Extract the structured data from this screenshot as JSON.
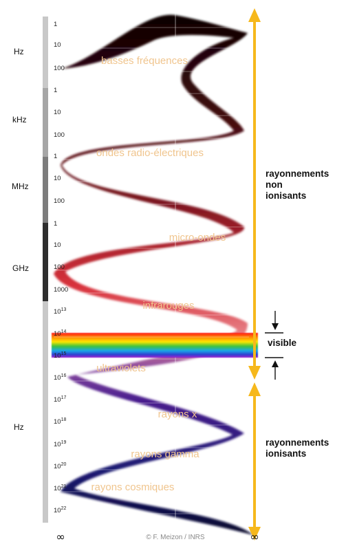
{
  "unit_groups": [
    {
      "label": "Hz",
      "color": "#c8c8c8"
    },
    {
      "label": "kHz",
      "color": "#a6a6a6"
    },
    {
      "label": "MHz",
      "color": "#7c7c7c"
    },
    {
      "label": "GHz",
      "color": "#2e2e2e"
    },
    {
      "label": "Hz",
      "color": "#c8c8c8"
    }
  ],
  "ticks": [
    {
      "base": "1",
      "exp": ""
    },
    {
      "base": "10",
      "exp": ""
    },
    {
      "base": "100",
      "exp": ""
    },
    {
      "base": "1",
      "exp": ""
    },
    {
      "base": "10",
      "exp": ""
    },
    {
      "base": "100",
      "exp": ""
    },
    {
      "base": "1",
      "exp": ""
    },
    {
      "base": "10",
      "exp": ""
    },
    {
      "base": "100",
      "exp": ""
    },
    {
      "base": "1",
      "exp": ""
    },
    {
      "base": "10",
      "exp": ""
    },
    {
      "base": "100",
      "exp": ""
    },
    {
      "base": "1000",
      "exp": ""
    },
    {
      "base": "10",
      "exp": "13"
    },
    {
      "base": "10",
      "exp": "14"
    },
    {
      "base": "10",
      "exp": "15"
    },
    {
      "base": "10",
      "exp": "16"
    },
    {
      "base": "10",
      "exp": "17"
    },
    {
      "base": "10",
      "exp": "18"
    },
    {
      "base": "10",
      "exp": "19"
    },
    {
      "base": "10",
      "exp": "20"
    },
    {
      "base": "10",
      "exp": "21"
    },
    {
      "base": "10",
      "exp": "22"
    }
  ],
  "bands": [
    "basses fréquences",
    "ondes radio-électriques",
    "micro-ondes",
    "infrarouges",
    "ultraviolets",
    "rayons x",
    "rayons gamma",
    "rayons cosmiques"
  ],
  "side_labels": {
    "non_ionizing": [
      "rayonnements",
      "non",
      "ionisants"
    ],
    "visible": "visible",
    "ionizing": [
      "rayonnements",
      "ionisants"
    ]
  },
  "infinity_symbol": "∞",
  "credit": "© F. Meizon / INRS",
  "colors": {
    "arrow": "#f6b81c",
    "wave_top": "#0d0203",
    "wave_red": "#d8323c",
    "wave_violet": "#4a1f8e",
    "wave_bottom": "#0a0a40",
    "band_text": "#f0c58e"
  }
}
